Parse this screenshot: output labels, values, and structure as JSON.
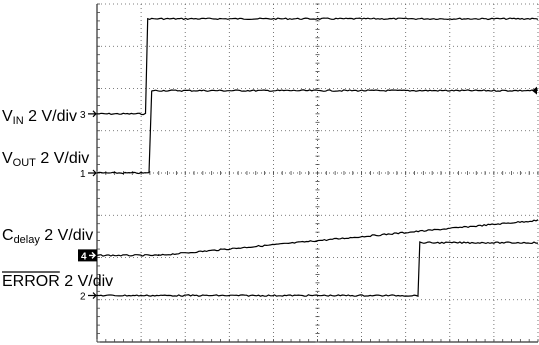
{
  "chart_data": {
    "type": "line",
    "title": "",
    "xlabel": "",
    "ylabel": "",
    "grid": true,
    "divisions": {
      "x": 10,
      "y": 8
    },
    "xlim": [
      0,
      10
    ],
    "ylim": [
      0,
      8
    ],
    "series": [
      {
        "name": "VIN",
        "label_main": "V",
        "label_sub": "IN",
        "label_suffix": " 2 V/div",
        "marker": "3",
        "marker_style": "normal",
        "color": "#000000",
        "x": [
          0,
          1.1,
          1.15,
          10
        ],
        "y": [
          5.4,
          5.4,
          7.65,
          7.65
        ]
      },
      {
        "name": "VOUT",
        "label_main": "V",
        "label_sub": "OUT",
        "label_suffix": " 2 V/div",
        "marker": "1",
        "marker_style": "normal",
        "color": "#000000",
        "x": [
          0,
          1.18,
          1.24,
          10
        ],
        "y": [
          4.0,
          4.0,
          5.95,
          5.95
        ]
      },
      {
        "name": "Cdelay",
        "label_main": "C",
        "label_sub": "delay",
        "label_suffix": " 2 V/div",
        "marker": "4",
        "marker_style": "inverted",
        "color": "#000000",
        "x": [
          0,
          1.4,
          10
        ],
        "y": [
          2.05,
          2.05,
          2.88
        ]
      },
      {
        "name": "ERROR",
        "label_main": "ERROR",
        "label_sub": "",
        "label_suffix": " 2 V/div",
        "overline": true,
        "marker": "2",
        "marker_style": "normal",
        "color": "#000000",
        "x": [
          0,
          7.28,
          7.32,
          10
        ],
        "y": [
          1.1,
          1.1,
          2.35,
          2.35
        ]
      }
    ]
  }
}
